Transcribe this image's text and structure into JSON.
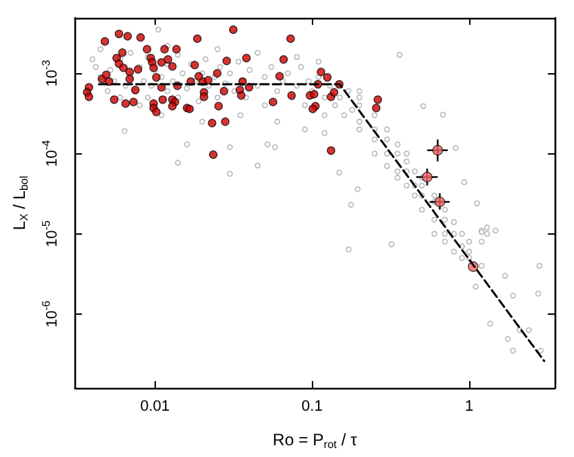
{
  "chart_data": {
    "type": "scatter",
    "xlabel": "Ro = P$_{rot}$ / τ",
    "ylabel": "L$_{X}$ / L$_{bol}$",
    "log": "xy",
    "grid": false,
    "marker": "circle",
    "xlim": [
      0.0031,
      3.5
    ],
    "ylim": [
      1.2e-07,
      0.0049
    ],
    "xticks": [
      0.01,
      0.1,
      1
    ],
    "yticks": [
      {
        "value": 1e-06,
        "label": "10$^{-6}$"
      },
      {
        "value": 1e-05,
        "label": "10$^{-5}$"
      },
      {
        "value": 0.0001,
        "label": "10$^{-4}$"
      },
      {
        "value": 0.001,
        "label": "10$^{-3}$"
      }
    ],
    "series": [
      {
        "color": "#a8a8a8",
        "x": [
          0.0042,
          0.0045,
          0.005,
          0.0052,
          0.0055,
          0.006,
          0.006,
          0.0065,
          0.007,
          0.007,
          0.0075,
          0.008,
          0.008,
          0.0085,
          0.009,
          0.009,
          0.0095,
          0.01,
          0.011,
          0.011,
          0.012,
          0.012,
          0.013,
          0.014,
          0.014,
          0.015,
          0.016,
          0.017,
          0.018,
          0.019,
          0.02,
          0.021,
          0.022,
          0.024,
          0.025,
          0.026,
          0.028,
          0.03,
          0.032,
          0.034,
          0.036,
          0.038,
          0.04,
          0.045,
          0.05,
          0.05,
          0.055,
          0.06,
          0.065,
          0.07,
          0.075,
          0.08,
          0.085,
          0.09,
          0.095,
          0.1,
          0.11,
          0.12,
          0.12,
          0.13,
          0.14,
          0.15,
          0.16,
          0.17,
          0.18,
          0.02,
          0.035,
          0.06,
          0.09,
          0.12,
          0.0045,
          0.012,
          0.025,
          0.045,
          0.08,
          0.11,
          0.0064,
          0.014,
          0.03,
          0.045,
          0.016,
          0.03,
          0.052,
          0.058,
          0.0105,
          0.004,
          0.2,
          0.2,
          0.2,
          0.2,
          0.2,
          0.25,
          0.25,
          0.25,
          0.25,
          0.3,
          0.3,
          0.3,
          0.3,
          0.35,
          0.35,
          0.35,
          0.35,
          0.4,
          0.4,
          0.4,
          0.4,
          0.45,
          0.45,
          0.45,
          0.5,
          0.5,
          0.5,
          0.5,
          0.6,
          0.6,
          0.6,
          0.6,
          0.7,
          0.7,
          0.7,
          0.7,
          0.8,
          0.8,
          0.8,
          0.9,
          0.9,
          0.9,
          1.0,
          1.0,
          1.0,
          1.2,
          1.2,
          1.2,
          1.3,
          1.3,
          1.1,
          0.171,
          0.32,
          2.8,
          2.75,
          1.9,
          1.36,
          1.69,
          2.09,
          1.76,
          1.9,
          2.85,
          2.4,
          0.36,
          0.68,
          0.51,
          0.82,
          0.177,
          0.149,
          0.195,
          0.93,
          1.12,
          1.47,
          1.2
        ],
        "values": [
          0.0012,
          0.0009,
          0.0006,
          0.0011,
          0.0008,
          0.0015,
          0.0005,
          0.0007,
          0.0018,
          0.0009,
          0.0006,
          0.0012,
          0.0004,
          0.0008,
          0.0016,
          0.0005,
          0.0007,
          0.0011,
          0.0009,
          0.0003,
          0.0006,
          0.0013,
          0.0008,
          0.0017,
          0.0005,
          0.001,
          0.00065,
          0.0013,
          0.0008,
          0.00045,
          0.001,
          0.0015,
          0.0007,
          0.0009,
          0.0005,
          0.0012,
          0.00075,
          0.001,
          0.0006,
          0.0014,
          0.0008,
          0.0005,
          0.0011,
          0.0007,
          0.0009,
          0.0004,
          0.0012,
          0.0006,
          0.0008,
          0.001,
          0.0005,
          0.0007,
          0.0012,
          0.0004,
          0.0008,
          0.0006,
          0.0009,
          0.0005,
          0.0003,
          0.0007,
          0.0004,
          0.0005,
          0.0003,
          0.0006,
          0.00035,
          0.00025,
          0.0003,
          0.00025,
          0.0002,
          0.00018,
          0.002,
          0.0022,
          0.002,
          0.0018,
          0.0016,
          0.0014,
          0.00019,
          7.7e-05,
          5.6e-05,
          7.1e-05,
          0.00013,
          0.00012,
          0.00013,
          0.00012,
          0.0035,
          0.0015,
          0.0005,
          0.00025,
          0.0004,
          0.0006,
          0.0002,
          0.0003,
          0.00015,
          0.0002,
          0.0001,
          0.0002,
          0.0001,
          7e-05,
          0.00015,
          0.0001,
          6e-05,
          0.00013,
          5e-05,
          8e-05,
          4e-05,
          6e-05,
          0.0001,
          6e-05,
          3e-05,
          4e-05,
          4e-05,
          2e-05,
          3e-05,
          5e-05,
          2.5e-05,
          1.5e-05,
          3e-05,
          1e-05,
          1.5e-05,
          8e-06,
          2e-05,
          1e-05,
          1e-05,
          6e-06,
          1.4e-05,
          7e-06,
          1e-05,
          5e-06,
          8e-06,
          5e-06,
          6e-06,
          1.1e-05,
          8e-06,
          4e-06,
          1e-05,
          1.2e-05,
          2.2e-06,
          6.4e-06,
          7.4e-06,
          4e-06,
          1.8e-06,
          1.7e-06,
          7.6e-07,
          3e-06,
          6.3e-07,
          4.9e-07,
          3.5e-07,
          3.5e-07,
          6.3e-07,
          0.0017,
          0.000306,
          0.00039,
          0.000118,
          2.3e-05,
          5.8e-05,
          3.6e-05,
          4.4e-05,
          2.4e-05,
          1.1e-05,
          1.05e-05
        ]
      },
      {
        "color": "#cc0000",
        "x": [
          0.0038,
          0.0037,
          0.0038,
          0.0048,
          0.0046,
          0.0049,
          0.0051,
          0.0059,
          0.0067,
          0.0081,
          0.0057,
          0.0059,
          0.0062,
          0.0063,
          0.0069,
          0.0069,
          0.0078,
          0.0055,
          0.0065,
          0.0073,
          0.0075,
          0.0089,
          0.0094,
          0.0096,
          0.0098,
          0.0102,
          0.0115,
          0.0121,
          0.011,
          0.0137,
          0.0129,
          0.011,
          0.0098,
          0.0098,
          0.0102,
          0.0112,
          0.0129,
          0.0134,
          0.0129,
          0.016,
          0.0166,
          0.0139,
          0.0169,
          0.0179,
          0.0186,
          0.0201,
          0.0205,
          0.0205,
          0.019,
          0.0218,
          0.0254,
          0.0275,
          0.0249,
          0.0286,
          0.0315,
          0.0231,
          0.028,
          0.0235,
          0.0347,
          0.0354,
          0.0361,
          0.0397,
          0.0382,
          0.0564,
          0.0621,
          0.0659,
          0.074,
          0.073,
          0.114,
          0.125,
          0.109,
          0.097,
          0.103,
          0.105,
          0.101,
          0.132,
          0.138,
          0.149,
          0.262,
          0.256,
          0.132
        ],
        "values": [
          0.00067,
          0.00058,
          0.00051,
          0.0025,
          0.00085,
          0.00096,
          0.00079,
          0.0031,
          0.0029,
          0.0028,
          0.00155,
          0.00132,
          0.00181,
          0.00117,
          0.00104,
          0.00085,
          0.00112,
          0.00047,
          0.00042,
          0.00044,
          0.00062,
          0.002,
          0.00155,
          0.00137,
          0.00117,
          0.00089,
          0.002,
          0.00149,
          0.00137,
          0.002,
          0.00122,
          0.00067,
          0.00042,
          0.00037,
          0.00033,
          0.00047,
          0.00047,
          0.00044,
          0.00039,
          0.00037,
          0.00036,
          0.0007,
          0.00079,
          0.00127,
          0.0027,
          0.00079,
          0.00058,
          0.00051,
          0.00092,
          0.00082,
          0.00039,
          0.0006,
          0.001,
          0.00143,
          0.0035,
          0.00024,
          0.00025,
          9.7e-05,
          0.00062,
          0.00053,
          0.00079,
          0.00067,
          0.00155,
          0.00044,
          0.00092,
          0.00149,
          0.00053,
          0.0027,
          0.00104,
          0.00089,
          0.00073,
          0.00053,
          0.00055,
          0.00039,
          0.00036,
          0.00051,
          0.00058,
          0.00073,
          0.00047,
          0.00037,
          0.000109
        ]
      },
      {
        "color": "#f06464",
        "x": [
          0.63,
          0.54,
          0.65,
          1.06
        ],
        "values": [
          0.00011,
          5.1e-05,
          2.5e-05,
          3.9e-06
        ],
        "errors": [
          [
            8e-05,
            0.00015
          ],
          [
            4e-05,
            6.5e-05
          ],
          [
            2e-05,
            3.2e-05
          ],
          null
        ],
        "xerrors": [
          [
            0.54,
            0.73
          ],
          [
            0.46,
            0.63
          ],
          [
            0.56,
            0.75
          ],
          null
        ]
      },
      {
        "type": "line",
        "color": "#000000",
        "line_style": "dashed",
        "marker": "none",
        "x": [
          0.0044,
          0.15,
          3.0
        ],
        "values": [
          0.00073,
          0.00073,
          2.6e-07
        ]
      }
    ]
  }
}
